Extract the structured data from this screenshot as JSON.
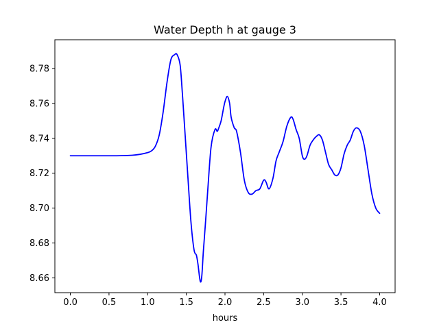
{
  "chart_data": {
    "type": "line",
    "title": "Water Depth h at gauge 3",
    "xlabel": "hours",
    "ylabel": "",
    "xlim": [
      -0.2,
      4.2
    ],
    "ylim": [
      8.6515,
      8.7965
    ],
    "xticks": [
      0.0,
      0.5,
      1.0,
      1.5,
      2.0,
      2.5,
      3.0,
      3.5,
      4.0
    ],
    "xtick_labels": [
      "0.0",
      "0.5",
      "1.0",
      "1.5",
      "2.0",
      "2.5",
      "3.0",
      "3.5",
      "4.0"
    ],
    "yticks": [
      8.66,
      8.68,
      8.7,
      8.72,
      8.74,
      8.76,
      8.78
    ],
    "ytick_labels": [
      "8.66",
      "8.68",
      "8.70",
      "8.72",
      "8.74",
      "8.76",
      "8.78"
    ],
    "grid": false,
    "series": [
      {
        "color": "#0000ff",
        "x": [
          0.0,
          0.3,
          0.6,
          0.8,
          0.9,
          1.0,
          1.05,
          1.1,
          1.15,
          1.2,
          1.25,
          1.3,
          1.35,
          1.38,
          1.42,
          1.45,
          1.48,
          1.52,
          1.56,
          1.6,
          1.63,
          1.65,
          1.68,
          1.7,
          1.72,
          1.75,
          1.78,
          1.82,
          1.87,
          1.9,
          1.92,
          1.95,
          1.98,
          2.0,
          2.03,
          2.06,
          2.08,
          2.12,
          2.15,
          2.2,
          2.25,
          2.3,
          2.35,
          2.4,
          2.45,
          2.5,
          2.53,
          2.57,
          2.62,
          2.66,
          2.7,
          2.75,
          2.8,
          2.85,
          2.88,
          2.92,
          2.96,
          3.0,
          3.03,
          3.06,
          3.1,
          3.14,
          3.18,
          3.22,
          3.26,
          3.3,
          3.34,
          3.38,
          3.42,
          3.46,
          3.5,
          3.54,
          3.58,
          3.62,
          3.66,
          3.7,
          3.75,
          3.8,
          3.85,
          3.9,
          3.95,
          4.0
        ],
        "y": [
          8.73,
          8.73,
          8.73,
          8.7303,
          8.7308,
          8.7318,
          8.7328,
          8.7355,
          8.742,
          8.755,
          8.772,
          8.785,
          8.788,
          8.788,
          8.782,
          8.765,
          8.745,
          8.718,
          8.692,
          8.676,
          8.673,
          8.668,
          8.658,
          8.661,
          8.675,
          8.693,
          8.712,
          8.735,
          8.745,
          8.744,
          8.746,
          8.75,
          8.757,
          8.761,
          8.764,
          8.76,
          8.752,
          8.746,
          8.744,
          8.732,
          8.716,
          8.709,
          8.708,
          8.71,
          8.711,
          8.716,
          8.715,
          8.711,
          8.717,
          8.727,
          8.732,
          8.738,
          8.747,
          8.752,
          8.751,
          8.745,
          8.74,
          8.73,
          8.728,
          8.73,
          8.736,
          8.739,
          8.741,
          8.742,
          8.739,
          8.732,
          8.725,
          8.722,
          8.719,
          8.719,
          8.723,
          8.731,
          8.736,
          8.739,
          8.744,
          8.746,
          8.744,
          8.736,
          8.722,
          8.708,
          8.7,
          8.697
        ]
      }
    ]
  }
}
